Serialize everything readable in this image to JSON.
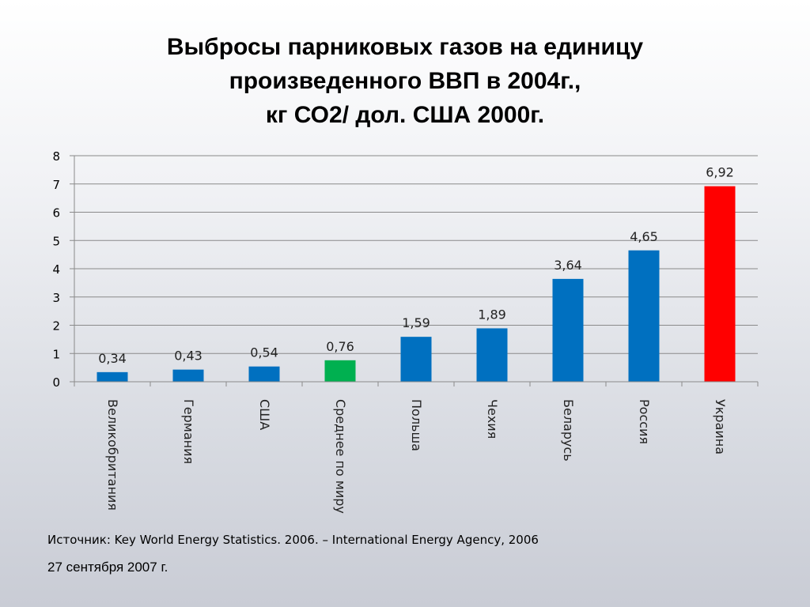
{
  "slide": {
    "title_lines": [
      "Выбросы парниковых газов на единицу",
      "произведенного ВВП в 2004г.,",
      "кг СО2/ дол. США 2000г."
    ],
    "source": "Источник:  Key World Energy Statistics. 2006. – International Energy Agency, 2006",
    "date": "27 сентября 2007 г."
  },
  "chart_data": {
    "type": "bar",
    "categories": [
      "Великобритания",
      "Германия",
      "США",
      "Среднее по миру",
      "Польша",
      "Чехия",
      "Беларусь",
      "Россия",
      "Украина"
    ],
    "values": [
      0.34,
      0.43,
      0.54,
      0.76,
      1.59,
      1.89,
      3.64,
      4.65,
      6.92
    ],
    "data_labels": [
      "0,34",
      "0,43",
      "0,54",
      "0,76",
      "1,59",
      "1,89",
      "3,64",
      "4,65",
      "6,92"
    ],
    "bar_colors": [
      "#0070c0",
      "#0070c0",
      "#0070c0",
      "#00b050",
      "#0070c0",
      "#0070c0",
      "#0070c0",
      "#0070c0",
      "#ff0000"
    ],
    "ylim": [
      0,
      8
    ],
    "yticks": [
      0,
      1,
      2,
      3,
      4,
      5,
      6,
      7,
      8
    ],
    "grid": true,
    "legend": "none",
    "category_label_rotation": "90deg clockwise"
  }
}
